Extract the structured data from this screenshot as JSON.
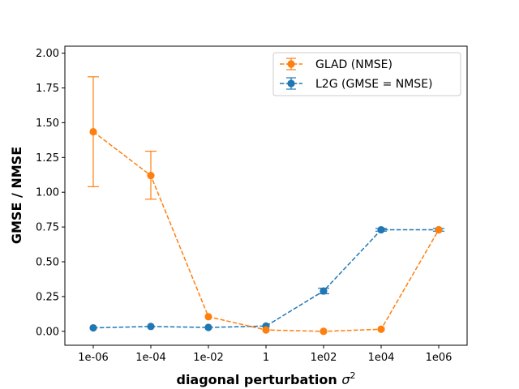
{
  "chart_data": {
    "type": "line",
    "title": "",
    "xlabel_main": "diagonal perturbation",
    "xlabel_symbol": "σ",
    "xlabel_sup": "2",
    "ylabel": "GMSE / NMSE",
    "categories": [
      "1e-06",
      "1e-04",
      "1e-02",
      "1",
      "1e02",
      "1e04",
      "1e06"
    ],
    "ylim": [
      -0.1,
      2.05
    ],
    "yticks": [
      0.0,
      0.25,
      0.5,
      0.75,
      1.0,
      1.25,
      1.5,
      1.75,
      2.0
    ],
    "ytick_labels": [
      "0.00",
      "0.25",
      "0.50",
      "0.75",
      "1.00",
      "1.25",
      "1.50",
      "1.75",
      "2.00"
    ],
    "legend_position": "top-right",
    "series": [
      {
        "name": "GLAD (NMSE)",
        "color": "#ff7f0e",
        "linestyle": "dashed",
        "values": [
          1.435,
          1.12,
          0.105,
          0.01,
          0.0,
          0.015,
          0.73
        ],
        "err_low": [
          1.04,
          0.95,
          null,
          null,
          null,
          null,
          null
        ],
        "err_high": [
          1.83,
          1.295,
          null,
          null,
          null,
          null,
          null
        ]
      },
      {
        "name": "L2G (GMSE = NMSE)",
        "color": "#1f77b4",
        "linestyle": "dashed",
        "values": [
          0.025,
          0.035,
          0.028,
          0.038,
          0.29,
          0.73,
          0.73
        ],
        "err_low": [
          null,
          null,
          null,
          null,
          0.27,
          0.72,
          0.72
        ],
        "err_high": [
          null,
          null,
          null,
          null,
          0.31,
          0.74,
          0.74
        ]
      }
    ]
  }
}
